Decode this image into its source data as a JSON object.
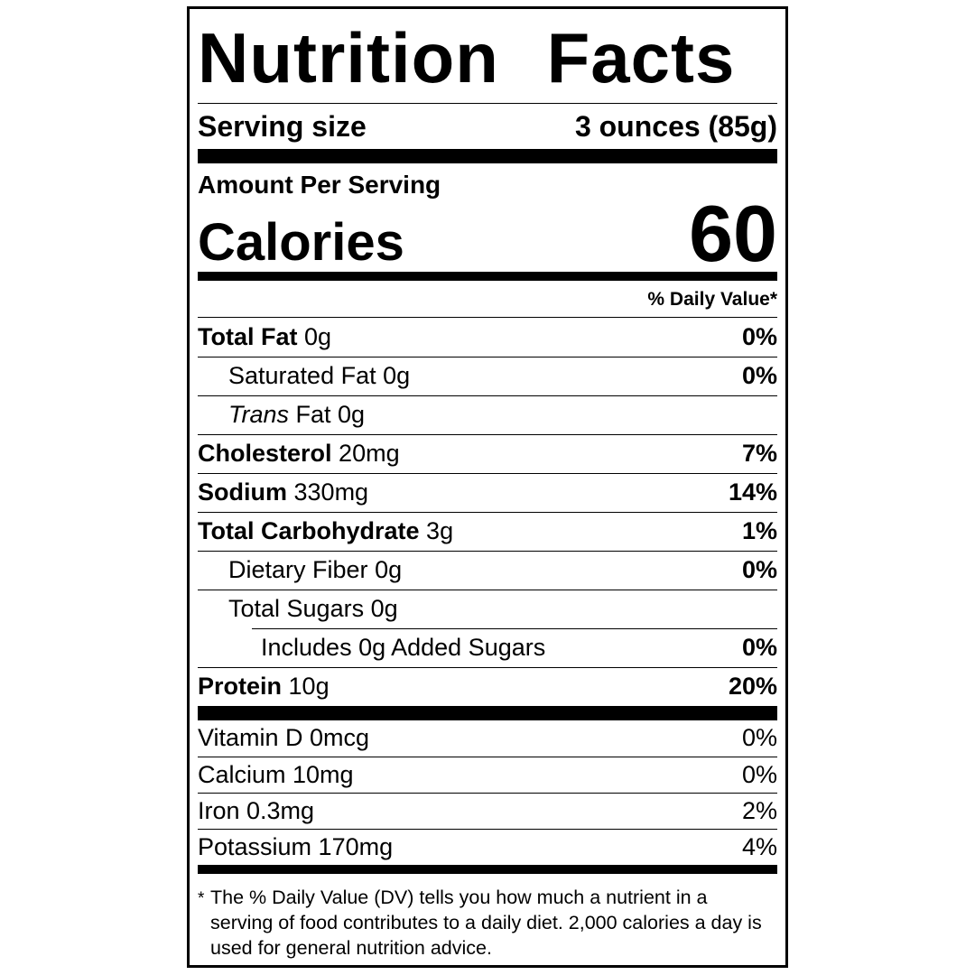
{
  "nutrition_label": {
    "title": "Nutrition Facts",
    "serving": {
      "label": "Serving size",
      "value": "3 ounces (85g)"
    },
    "calories_section": {
      "header": "Amount Per Serving",
      "label": "Calories",
      "value": "60"
    },
    "daily_value_header": "% Daily Value*",
    "nutrients": [
      {
        "name": "Total Fat",
        "amount": "0g",
        "dv": "0%"
      },
      {
        "name": "Saturated Fat",
        "amount": "0g",
        "dv": "0%"
      },
      {
        "name": "Trans",
        "amount": "Fat 0g",
        "dv": ""
      },
      {
        "name": "Cholesterol",
        "amount": "20mg",
        "dv": "7%"
      },
      {
        "name": "Sodium",
        "amount": "330mg",
        "dv": "14%"
      },
      {
        "name": "Total Carbohydrate",
        "amount": "3g",
        "dv": "1%"
      },
      {
        "name": "Dietary Fiber",
        "amount": "0g",
        "dv": "0%"
      },
      {
        "name": "Total Sugars",
        "amount": "0g",
        "dv": ""
      },
      {
        "name": "Includes 0g Added Sugars",
        "amount": "",
        "dv": "0%"
      },
      {
        "name": "Protein",
        "amount": "10g",
        "dv": "20%"
      }
    ],
    "micronutrients": [
      {
        "name": "Vitamin D 0mcg",
        "dv": "0%"
      },
      {
        "name": "Calcium 10mg",
        "dv": "0%"
      },
      {
        "name": "Iron 0.3mg",
        "dv": "2%"
      },
      {
        "name": "Potassium 170mg",
        "dv": "4%"
      }
    ],
    "footnote": {
      "marker": "*",
      "text": "The % Daily Value (DV) tells you how much a nutrient in a serving of food contributes to a daily diet. 2,000 calories a day is used for general nutrition advice."
    }
  }
}
